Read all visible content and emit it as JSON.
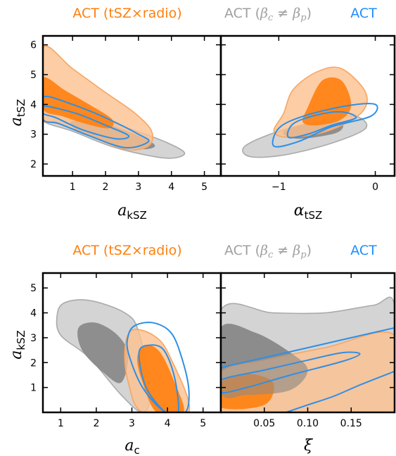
{
  "colors": {
    "orange_fill_outer": "#fcc08f",
    "orange_fill_inner": "#ff7f0e",
    "orange_line": "#f7a561",
    "gray_fill_outer": "#d2d2d2",
    "gray_fill_inner": "#8a8a8a",
    "gray_line": "#aaaaaa",
    "blue_line": "#2e8fe6",
    "legend_orange": "#ff7f0e",
    "legend_gray": "#a0a0a0",
    "legend_blue": "#1f8fff"
  },
  "chart_data": [
    {
      "type": "contour",
      "legend": [
        {
          "name": "ACT (tSZ×radio)",
          "color": "orange"
        },
        {
          "name": "ACT (β_c ≠ β_p)",
          "color": "gray"
        },
        {
          "name": "ACT",
          "color": "blue"
        }
      ],
      "panels": [
        {
          "xlabel": "a",
          "xlabel_sub": "kSZ",
          "ylabel": "a",
          "ylabel_sub": "tSZ",
          "xlim": [
            0.1,
            5.5
          ],
          "ylim": [
            1.6,
            6.3
          ],
          "xticks": [
            "1",
            "2",
            "3",
            "4",
            "5"
          ],
          "yticks": [
            "2",
            "3",
            "4",
            "5",
            "6"
          ],
          "contours": {
            "orange_outer": [
              [
                0.1,
                5.9
              ],
              [
                1.0,
                5.2
              ],
              [
                2.0,
                4.4
              ],
              [
                2.9,
                3.7
              ],
              [
                3.4,
                3.1
              ],
              [
                3.3,
                2.6
              ],
              [
                2.6,
                2.5
              ],
              [
                1.4,
                3.0
              ],
              [
                0.5,
                3.4
              ],
              [
                0.1,
                3.6
              ]
            ],
            "orange_inner": [
              [
                0.1,
                4.9
              ],
              [
                0.8,
                4.45
              ],
              [
                1.5,
                4.0
              ],
              [
                2.2,
                3.5
              ],
              [
                2.1,
                3.2
              ],
              [
                1.4,
                3.35
              ],
              [
                0.7,
                3.6
              ],
              [
                0.1,
                3.85
              ]
            ],
            "gray_outer": [
              [
                0.1,
                4.0
              ],
              [
                1.3,
                3.7
              ],
              [
                2.7,
                3.2
              ],
              [
                3.9,
                2.7
              ],
              [
                4.4,
                2.35
              ],
              [
                3.8,
                2.2
              ],
              [
                2.3,
                2.55
              ],
              [
                1.0,
                3.1
              ],
              [
                0.1,
                3.45
              ]
            ],
            "gray_inner": [
              [
                1.0,
                3.45
              ],
              [
                2.0,
                3.35
              ],
              [
                3.1,
                2.9
              ],
              [
                3.5,
                2.6
              ],
              [
                3.0,
                2.5
              ],
              [
                2.0,
                2.75
              ],
              [
                1.1,
                3.15
              ]
            ],
            "blue_outer": [
              [
                0.1,
                4.25
              ],
              [
                1.0,
                4.0
              ],
              [
                2.0,
                3.55
              ],
              [
                3.0,
                3.0
              ],
              [
                3.3,
                2.75
              ],
              [
                2.6,
                2.55
              ],
              [
                1.5,
                2.95
              ],
              [
                0.6,
                3.35
              ],
              [
                0.1,
                3.5
              ]
            ],
            "blue_inner": [
              [
                0.1,
                3.95
              ],
              [
                1.1,
                3.7
              ],
              [
                2.0,
                3.3
              ],
              [
                2.7,
                2.95
              ],
              [
                2.3,
                2.85
              ],
              [
                1.3,
                3.15
              ],
              [
                0.5,
                3.55
              ],
              [
                0.1,
                3.7
              ]
            ]
          }
        },
        {
          "xlabel": "α",
          "xlabel_sub": "tSZ",
          "xlim": [
            -1.6,
            0.2
          ],
          "ylim": [
            1.6,
            6.3
          ],
          "xticks": [
            "−1",
            "0"
          ],
          "contours": {
            "orange_outer": [
              [
                -0.85,
                4.5
              ],
              [
                -0.6,
                5.1
              ],
              [
                -0.35,
                5.2
              ],
              [
                -0.1,
                4.4
              ],
              [
                -0.15,
                3.7
              ],
              [
                -0.5,
                3.1
              ],
              [
                -0.9,
                2.9
              ],
              [
                -1.05,
                3.1
              ],
              [
                -0.95,
                3.7
              ]
            ],
            "orange_inner": [
              [
                -0.7,
                3.9
              ],
              [
                -0.55,
                4.8
              ],
              [
                -0.35,
                4.8
              ],
              [
                -0.25,
                4.0
              ],
              [
                -0.35,
                3.5
              ],
              [
                -0.6,
                3.3
              ],
              [
                -0.75,
                3.4
              ]
            ],
            "gray_outer": [
              [
                -1.35,
                2.6
              ],
              [
                -1.0,
                3.1
              ],
              [
                -0.5,
                3.5
              ],
              [
                -0.2,
                3.6
              ],
              [
                -0.1,
                3.2
              ],
              [
                -0.45,
                2.7
              ],
              [
                -0.95,
                2.3
              ],
              [
                -1.3,
                2.25
              ]
            ],
            "gray_inner": [
              [
                -0.95,
                3.1
              ],
              [
                -0.6,
                3.4
              ],
              [
                -0.35,
                3.4
              ],
              [
                -0.4,
                3.05
              ],
              [
                -0.8,
                2.85
              ]
            ],
            "blue_outer": [
              [
                -1.05,
                2.6
              ],
              [
                -1.0,
                3.2
              ],
              [
                -0.75,
                3.6
              ],
              [
                -0.3,
                3.95
              ],
              [
                0.0,
                4.0
              ],
              [
                -0.05,
                3.6
              ],
              [
                -0.45,
                3.25
              ],
              [
                -0.8,
                2.75
              ]
            ],
            "blue_inner": [
              [
                -0.9,
                2.9
              ],
              [
                -0.85,
                3.35
              ],
              [
                -0.6,
                3.65
              ],
              [
                -0.35,
                3.75
              ],
              [
                -0.2,
                3.55
              ],
              [
                -0.45,
                3.3
              ],
              [
                -0.7,
                3.0
              ]
            ]
          }
        }
      ]
    },
    {
      "type": "contour",
      "legend": [
        {
          "name": "ACT (tSZ×radio)",
          "color": "orange"
        },
        {
          "name": "ACT (β_c ≠ β_p)",
          "color": "gray"
        },
        {
          "name": "ACT",
          "color": "blue"
        }
      ],
      "panels": [
        {
          "xlabel": "a",
          "xlabel_sub": "c",
          "ylabel": "a",
          "ylabel_sub": "kSZ",
          "xlim": [
            0.5,
            5.5
          ],
          "ylim": [
            0.0,
            5.6
          ],
          "xticks": [
            "1",
            "2",
            "3",
            "4",
            "5"
          ],
          "yticks": [
            "1",
            "2",
            "3",
            "4",
            "5"
          ],
          "contours": {
            "orange_outer": [
              [
                3.0,
                3.3
              ],
              [
                3.6,
                3.1
              ],
              [
                4.05,
                2.3
              ],
              [
                4.6,
                0.0
              ],
              [
                3.3,
                0.0
              ],
              [
                2.9,
                1.2
              ],
              [
                2.8,
                2.5
              ]
            ],
            "orange_inner": [
              [
                3.4,
                2.7
              ],
              [
                3.8,
                2.4
              ],
              [
                4.2,
                1.2
              ],
              [
                4.45,
                0.0
              ],
              [
                3.7,
                0.0
              ],
              [
                3.3,
                1.2
              ],
              [
                3.15,
                2.2
              ]
            ],
            "gray_outer": [
              [
                1.1,
                4.4
              ],
              [
                1.8,
                4.5
              ],
              [
                2.8,
                4.0
              ],
              [
                3.2,
                3.2
              ],
              [
                3.5,
                0.8
              ],
              [
                3.3,
                0.0
              ],
              [
                2.7,
                0.7
              ],
              [
                1.8,
                2.2
              ],
              [
                1.0,
                3.1
              ],
              [
                0.9,
                3.9
              ]
            ],
            "gray_inner": [
              [
                1.5,
                3.4
              ],
              [
                2.0,
                3.6
              ],
              [
                2.6,
                3.1
              ],
              [
                2.9,
                2.3
              ],
              [
                2.7,
                1.2
              ],
              [
                2.2,
                1.6
              ],
              [
                1.6,
                2.5
              ]
            ],
            "blue_outer": [
              [
                3.1,
                3.5
              ],
              [
                3.6,
                3.6
              ],
              [
                4.1,
                3.2
              ],
              [
                4.4,
                2.2
              ],
              [
                4.6,
                0.9
              ],
              [
                4.5,
                0.0
              ],
              [
                3.95,
                0.0
              ],
              [
                3.3,
                1.0
              ],
              [
                2.9,
                2.4
              ],
              [
                2.9,
                3.1
              ]
            ],
            "blue_inner": [
              [
                3.2,
                2.4
              ],
              [
                3.5,
                2.7
              ],
              [
                3.9,
                2.5
              ],
              [
                4.2,
                1.4
              ],
              [
                4.3,
                0.0
              ],
              [
                3.95,
                0.0
              ],
              [
                3.4,
                1.0
              ]
            ]
          }
        },
        {
          "xlabel": "ξ",
          "xlim": [
            0.0,
            0.2
          ],
          "ylim": [
            0.0,
            5.6
          ],
          "xticks": [
            "0.05",
            "0.10",
            "0.15"
          ],
          "contours": {
            "orange_outer": [
              [
                0.0,
                1.6
              ],
              [
                0.05,
                2.1
              ],
              [
                0.12,
                2.6
              ],
              [
                0.2,
                3.1
              ],
              [
                0.2,
                0.0
              ],
              [
                0.0,
                0.0
              ]
            ],
            "orange_inner": [
              [
                0.0,
                1.2
              ],
              [
                0.03,
                1.55
              ],
              [
                0.06,
                1.2
              ],
              [
                0.05,
                0.3
              ],
              [
                0.0,
                0.2
              ]
            ],
            "gray_outer": [
              [
                0.0,
                4.1
              ],
              [
                0.06,
                4.0
              ],
              [
                0.12,
                4.0
              ],
              [
                0.175,
                4.3
              ],
              [
                0.2,
                4.3
              ],
              [
                0.2,
                0.0
              ],
              [
                0.0,
                0.0
              ]
            ],
            "gray_inner": [
              [
                0.0,
                3.4
              ],
              [
                0.04,
                3.2
              ],
              [
                0.08,
                2.4
              ],
              [
                0.1,
                1.7
              ],
              [
                0.08,
                0.9
              ],
              [
                0.03,
                0.7
              ],
              [
                0.0,
                0.8
              ]
            ],
            "blue_outer": [
              [
                0.0,
                1.8
              ],
              [
                0.05,
                2.2
              ],
              [
                0.1,
                2.6
              ],
              [
                0.15,
                3.0
              ],
              [
                0.2,
                3.4
              ]
            ],
            "blue_inner": [
              [
                0.0,
                1.3
              ],
              [
                0.05,
                1.7
              ],
              [
                0.1,
                2.1
              ],
              [
                0.14,
                2.4
              ],
              [
                0.16,
                2.35
              ],
              [
                0.14,
                2.05
              ],
              [
                0.08,
                1.5
              ],
              [
                0.03,
                1.0
              ],
              [
                0.0,
                0.8
              ]
            ],
            "blue_lower": [
              [
                0.2,
                1.65
              ],
              [
                0.16,
                1.1
              ],
              [
                0.13,
                0.65
              ],
              [
                0.1,
                0.3
              ],
              [
                0.075,
                0.0
              ]
            ]
          }
        }
      ]
    }
  ]
}
